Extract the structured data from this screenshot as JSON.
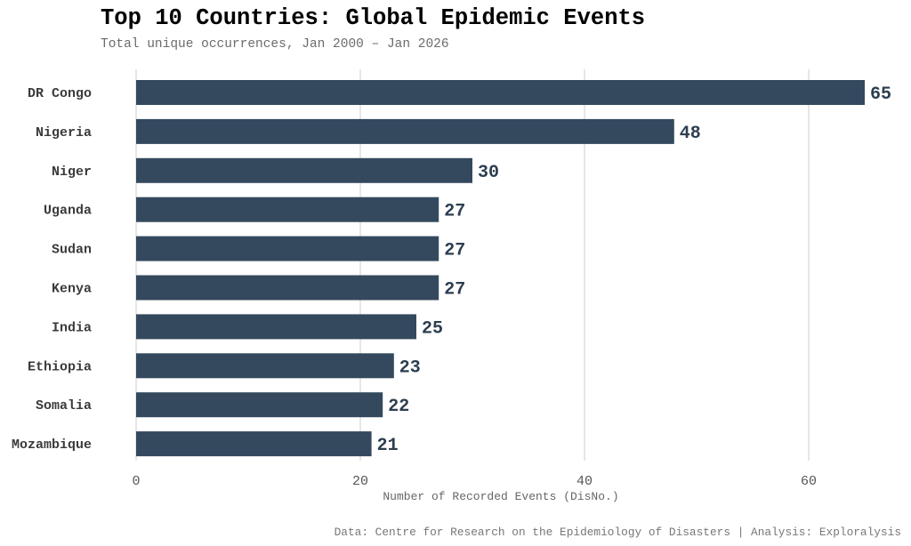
{
  "chart_data": {
    "type": "bar",
    "orientation": "horizontal",
    "title": "Top 10 Countries: Global Epidemic Events",
    "subtitle": "Total unique occurrences, Jan 2000 – Jan 2026",
    "categories": [
      "DR Congo",
      "Nigeria",
      "Niger",
      "Uganda",
      "Sudan",
      "Kenya",
      "India",
      "Ethiopia",
      "Somalia",
      "Mozambique"
    ],
    "values": [
      65,
      48,
      30,
      27,
      27,
      27,
      25,
      23,
      22,
      21
    ],
    "xlabel": "Number of Recorded Events (DisNo.)",
    "ylabel": "",
    "xlim": [
      0,
      65
    ],
    "xticks": [
      0,
      20,
      40,
      60
    ],
    "xtick_labels": [
      "0",
      "20",
      "40",
      "60"
    ],
    "grid": "vertical major",
    "bar_color": "#34495e",
    "caption": "Data: Centre for Research on the Epidemiology of Disasters | Analysis: Exploralysis"
  }
}
